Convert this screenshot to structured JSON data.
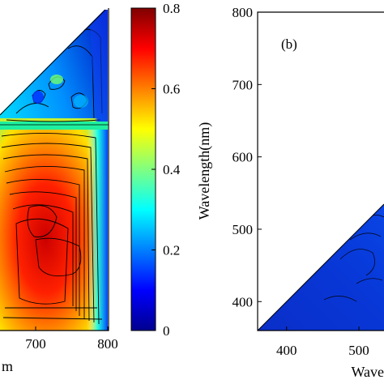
{
  "chart_data": [
    {
      "panel": "a",
      "type": "heatmap",
      "title": "",
      "xlabel": "m",
      "ylabel": "",
      "x_tick_labels": [
        "700",
        "800"
      ],
      "colorbar": {
        "range": [
          0,
          0.8
        ],
        "tick_labels": [
          "0",
          "0.2",
          "0.4",
          "0.6",
          "0.8"
        ],
        "colormap": "jet"
      },
      "grid": false
    },
    {
      "panel": "b",
      "type": "heatmap",
      "title": "",
      "panel_label": "(b)",
      "xlabel": "Wave",
      "ylabel": "Wavelength(nm)",
      "xlim": [
        360,
        600
      ],
      "ylim": [
        360,
        800
      ],
      "x_tick_labels": [
        "400",
        "500"
      ],
      "y_tick_labels": [
        "400",
        "500",
        "600",
        "700",
        "800"
      ],
      "grid": false
    }
  ],
  "colors": {
    "deep_blue": "#00008f",
    "dark_red": "#800000"
  }
}
